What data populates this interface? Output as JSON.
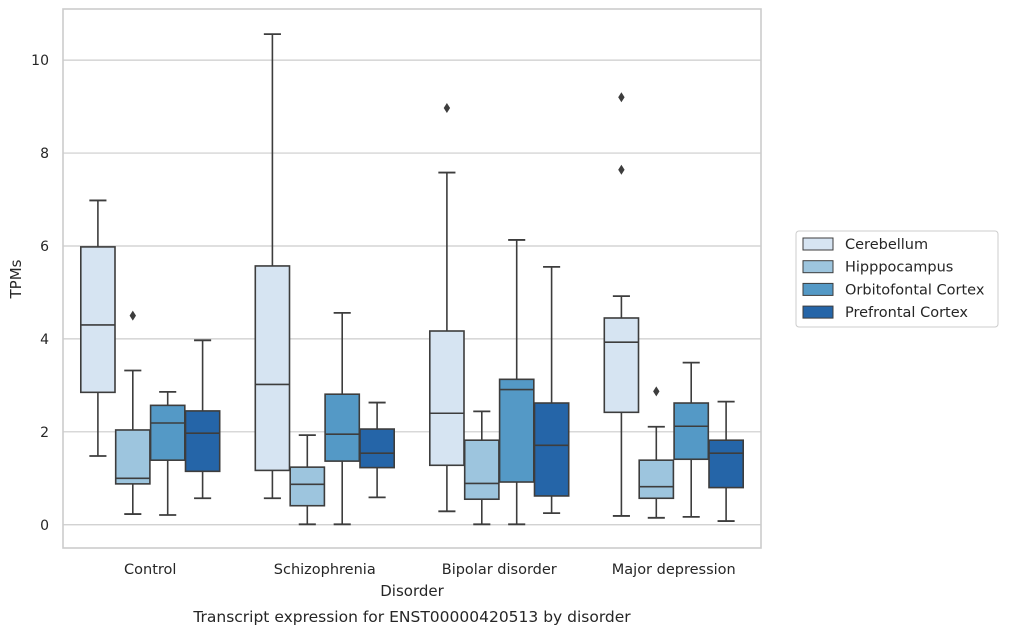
{
  "chart_data": {
    "type": "box",
    "caption": "Transcript expression for ENST00000420513 by disorder",
    "xlabel": "Disorder",
    "ylabel": "TPMs",
    "ylim": [
      -0.5,
      11.1
    ],
    "yticks": [
      0,
      2,
      4,
      6,
      8,
      10
    ],
    "grid": true,
    "legend_position": "right",
    "categories": [
      "Control",
      "Schizophrenia",
      "Bipolar disorder",
      "Major depression"
    ],
    "series": [
      {
        "name": "Cerebellum",
        "color": "#d6e4f2",
        "boxes": [
          {
            "whislo": 1.48,
            "q1": 2.85,
            "med": 4.3,
            "q3": 5.98,
            "whishi": 6.98,
            "fliers": []
          },
          {
            "whislo": 0.57,
            "q1": 1.17,
            "med": 3.02,
            "q3": 5.57,
            "whishi": 10.56,
            "fliers": []
          },
          {
            "whislo": 0.29,
            "q1": 1.28,
            "med": 2.4,
            "q3": 4.17,
            "whishi": 7.58,
            "fliers": [
              8.97
            ]
          },
          {
            "whislo": 0.19,
            "q1": 2.42,
            "med": 3.93,
            "q3": 4.45,
            "whishi": 4.92,
            "fliers": [
              7.64,
              9.2
            ]
          }
        ]
      },
      {
        "name": "Hipppocampus",
        "color": "#9dc5de",
        "boxes": [
          {
            "whislo": 0.23,
            "q1": 0.88,
            "med": 1.0,
            "q3": 2.04,
            "whishi": 3.32,
            "fliers": [
              4.5
            ]
          },
          {
            "whislo": 0.01,
            "q1": 0.41,
            "med": 0.87,
            "q3": 1.24,
            "whishi": 1.93,
            "fliers": []
          },
          {
            "whislo": 0.01,
            "q1": 0.55,
            "med": 0.89,
            "q3": 1.82,
            "whishi": 2.44,
            "fliers": []
          },
          {
            "whislo": 0.15,
            "q1": 0.57,
            "med": 0.82,
            "q3": 1.39,
            "whishi": 2.11,
            "fliers": [
              2.87
            ]
          }
        ]
      },
      {
        "name": "Orbitofontal Cortex",
        "color": "#5499c6",
        "boxes": [
          {
            "whislo": 0.21,
            "q1": 1.39,
            "med": 2.19,
            "q3": 2.57,
            "whishi": 2.86,
            "fliers": []
          },
          {
            "whislo": 0.01,
            "q1": 1.37,
            "med": 1.95,
            "q3": 2.81,
            "whishi": 4.56,
            "fliers": []
          },
          {
            "whislo": 0.01,
            "q1": 0.92,
            "med": 2.91,
            "q3": 3.13,
            "whishi": 6.13,
            "fliers": []
          },
          {
            "whislo": 0.17,
            "q1": 1.41,
            "med": 2.12,
            "q3": 2.62,
            "whishi": 3.49,
            "fliers": []
          }
        ]
      },
      {
        "name": "Prefrontal Cortex",
        "color": "#2565a8",
        "boxes": [
          {
            "whislo": 0.57,
            "q1": 1.15,
            "med": 1.97,
            "q3": 2.45,
            "whishi": 3.97,
            "fliers": []
          },
          {
            "whislo": 0.59,
            "q1": 1.23,
            "med": 1.54,
            "q3": 2.06,
            "whishi": 2.63,
            "fliers": []
          },
          {
            "whislo": 0.25,
            "q1": 0.62,
            "med": 1.71,
            "q3": 2.62,
            "whishi": 5.55,
            "fliers": []
          },
          {
            "whislo": 0.08,
            "q1": 0.8,
            "med": 1.54,
            "q3": 1.82,
            "whishi": 2.65,
            "fliers": []
          }
        ]
      }
    ]
  }
}
